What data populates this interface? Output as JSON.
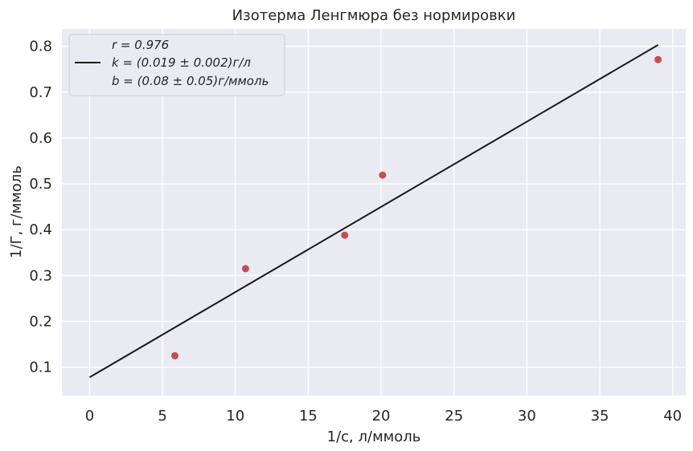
{
  "chart_data": {
    "type": "scatter",
    "title": "Изотерма Ленгмюра без нормировки",
    "xlabel": "1/с, л/ммоль",
    "ylabel": "1/Г, г/ммоль",
    "xlim": [
      -1.9,
      40.9
    ],
    "ylim": [
      0.038,
      0.838
    ],
    "xticks": [
      0,
      5,
      10,
      15,
      20,
      25,
      30,
      35,
      40
    ],
    "yticks": [
      0.1,
      0.2,
      0.3,
      0.4,
      0.5,
      0.6,
      0.7,
      0.8
    ],
    "xtick_labels": [
      "0",
      "5",
      "10",
      "15",
      "20",
      "25",
      "30",
      "35",
      "40"
    ],
    "ytick_labels": [
      "0.1",
      "0.2",
      "0.3",
      "0.4",
      "0.5",
      "0.6",
      "0.7",
      "0.8"
    ],
    "grid": true,
    "legend_position": "top-left",
    "colors": {
      "background": "#eaeaf2",
      "grid": "#ffffff",
      "points": "#c44e52",
      "line": "#1a1a1a"
    },
    "series": [
      {
        "kind": "scatter",
        "x": [
          5.85,
          10.7,
          17.5,
          20.1,
          39.0
        ],
        "y": [
          0.125,
          0.315,
          0.388,
          0.519,
          0.771
        ]
      },
      {
        "kind": "line",
        "x": [
          0,
          39.0
        ],
        "y": [
          0.078,
          0.803
        ]
      }
    ],
    "legend": {
      "lines": [
        "r = 0.976",
        "k = (0.019 ± 0.002)г/л",
        "b = (0.08 ± 0.05)г/ммоль"
      ]
    }
  }
}
